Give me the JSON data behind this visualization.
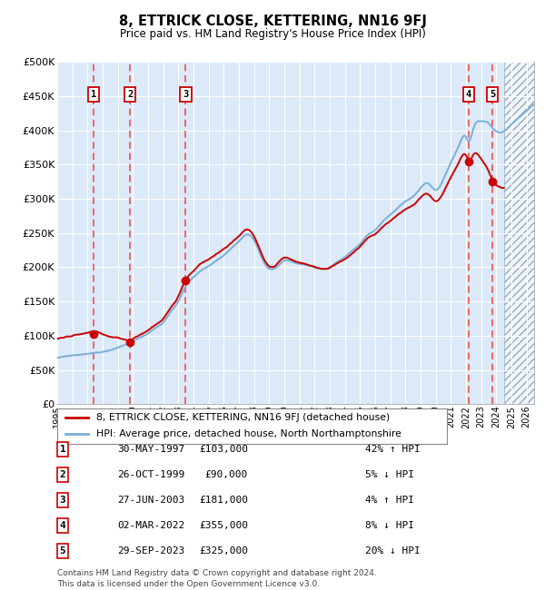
{
  "title": "8, ETTRICK CLOSE, KETTERING, NN16 9FJ",
  "subtitle": "Price paid vs. HM Land Registry's House Price Index (HPI)",
  "legend_line1": "8, ETTRICK CLOSE, KETTERING, NN16 9FJ (detached house)",
  "legend_line2": "HPI: Average price, detached house, North Northamptonshire",
  "footer": "Contains HM Land Registry data © Crown copyright and database right 2024.\nThis data is licensed under the Open Government Licence v3.0.",
  "xmin": 1995.0,
  "xmax": 2026.5,
  "ymin": 0,
  "ymax": 500000,
  "yticks": [
    0,
    50000,
    100000,
    150000,
    200000,
    250000,
    300000,
    350000,
    400000,
    450000,
    500000
  ],
  "ytick_labels": [
    "£0",
    "£50K",
    "£100K",
    "£150K",
    "£200K",
    "£250K",
    "£300K",
    "£350K",
    "£400K",
    "£450K",
    "£500K"
  ],
  "xticks": [
    1995,
    1996,
    1997,
    1998,
    1999,
    2000,
    2001,
    2002,
    2003,
    2004,
    2005,
    2006,
    2007,
    2008,
    2009,
    2010,
    2011,
    2012,
    2013,
    2014,
    2015,
    2016,
    2017,
    2018,
    2019,
    2020,
    2021,
    2022,
    2023,
    2024,
    2025,
    2026
  ],
  "sale_dates": [
    1997.41,
    1999.82,
    2003.49,
    2022.17,
    2023.75
  ],
  "sale_prices": [
    103000,
    90000,
    181000,
    355000,
    325000
  ],
  "sale_labels": [
    "1",
    "2",
    "3",
    "4",
    "5"
  ],
  "hpi_color": "#7aaed6",
  "property_color": "#cc0000",
  "background_color": "#dce9f8",
  "grid_color": "#ffffff",
  "dashed_line_color": "#ee3333",
  "future_start": 2024.5,
  "table_rows": [
    [
      "1",
      "30-MAY-1997",
      "£103,000",
      "42% ↑ HPI"
    ],
    [
      "2",
      "26-OCT-1999",
      "£90,000",
      "5% ↓ HPI"
    ],
    [
      "3",
      "27-JUN-2003",
      "£181,000",
      "4% ↑ HPI"
    ],
    [
      "4",
      "02-MAR-2022",
      "£355,000",
      "8% ↓ HPI"
    ],
    [
      "5",
      "29-SEP-2023",
      "£325,000",
      "20% ↓ HPI"
    ]
  ]
}
